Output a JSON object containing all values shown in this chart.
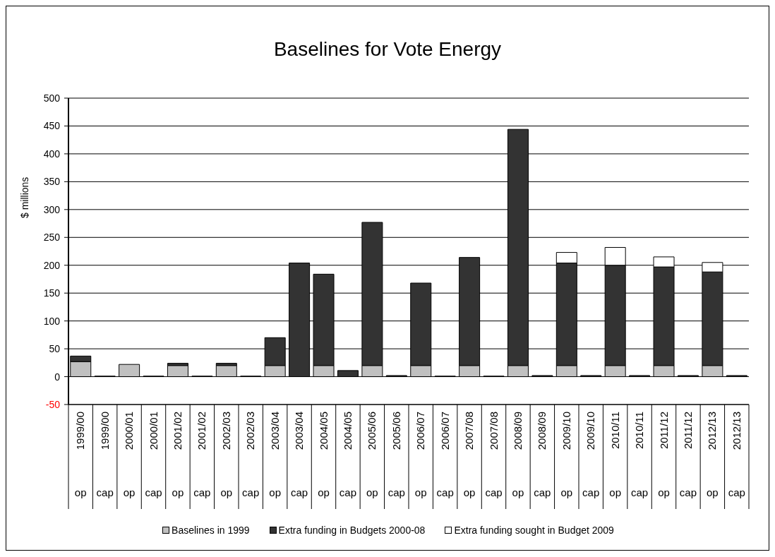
{
  "chart_data": {
    "type": "bar",
    "title": "Baselines for Vote Energy",
    "ylabel": "$ millions",
    "categories": [
      "1999/00 op",
      "1999/00 cap",
      "2000/01 op",
      "2000/01 cap",
      "2001/02 op",
      "2001/02 cap",
      "2002/03 op",
      "2002/03 cap",
      "2003/04 op",
      "2003/04 cap",
      "2004/05 op",
      "2004/05 cap",
      "2005/06 op",
      "2005/06 cap",
      "2006/07 op",
      "2006/07 cap",
      "2007/08 op",
      "2007/08 cap",
      "2008/09 op",
      "2008/09 cap",
      "2009/10 op",
      "2009/10 cap",
      "2010/11 op",
      "2010/11 cap",
      "2011/12 op",
      "2011/12 cap",
      "2012/13 op",
      "2012/13 cap"
    ],
    "stacked": true,
    "series": [
      {
        "name": "Baselines in 1999",
        "color": "#c0c0c0",
        "values": [
          27,
          0,
          22,
          0,
          20,
          0,
          20,
          0,
          20,
          0,
          20,
          0,
          20,
          0,
          20,
          0,
          20,
          0,
          20,
          0,
          20,
          0,
          20,
          0,
          20,
          0,
          20,
          0
        ]
      },
      {
        "name": "Extra funding in Budgets 2000-08",
        "color": "#333333",
        "values": [
          10,
          1,
          0,
          1,
          4,
          1,
          4,
          1,
          50,
          204,
          164,
          11,
          257,
          2,
          148,
          1,
          194,
          1,
          424,
          2,
          184,
          2,
          180,
          2,
          177,
          2,
          168,
          2
        ]
      },
      {
        "name": "Extra funding sought in Budget 2009",
        "color": "#ffffff",
        "values": [
          0,
          0,
          0,
          0,
          0,
          0,
          0,
          0,
          0,
          0,
          0,
          0,
          0,
          0,
          0,
          0,
          0,
          0,
          0,
          0,
          19,
          0,
          32,
          0,
          18,
          0,
          17,
          0
        ]
      }
    ],
    "ylim": [
      -50,
      500
    ],
    "yticks": [
      -50,
      0,
      50,
      100,
      150,
      200,
      250,
      300,
      350,
      400,
      450,
      500
    ],
    "grid": "y",
    "legend": "bottom"
  }
}
